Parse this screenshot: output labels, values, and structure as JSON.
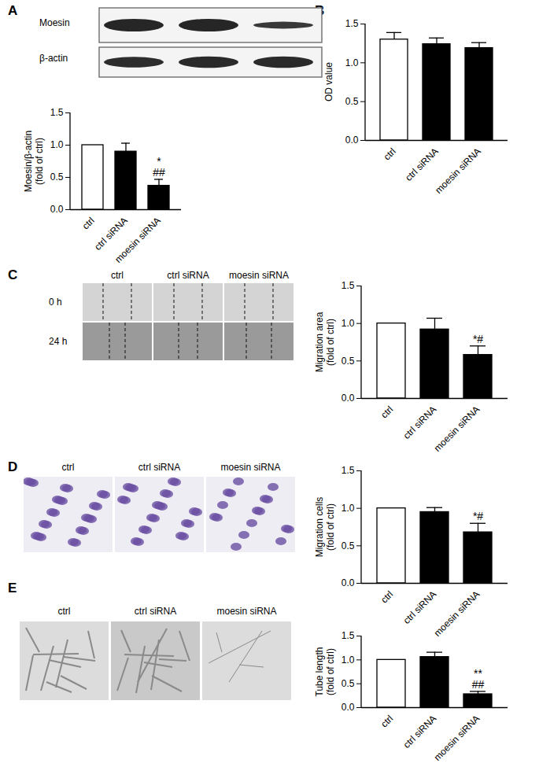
{
  "figure": {
    "panels": [
      {
        "letter": "A",
        "blot_labels": [
          "Moesin",
          "β-actin"
        ]
      },
      {
        "letter": "B"
      },
      {
        "letter": "C",
        "image_columns": [
          "ctrl",
          "ctrl siRNA",
          "moesin siRNA"
        ],
        "image_rows": [
          "0 h",
          "24 h"
        ]
      },
      {
        "letter": "D",
        "image_columns": [
          "ctrl",
          "ctrl siRNA",
          "moesin siRNA"
        ]
      },
      {
        "letter": "E",
        "image_columns": [
          "ctrl",
          "ctrl siRNA",
          "moesin siRNA"
        ]
      }
    ]
  },
  "chart_data": [
    {
      "type": "bar",
      "categories": [
        "ctrl",
        "ctrl siRNA",
        "moesin siRNA"
      ],
      "values": [
        1.0,
        0.9,
        0.37
      ],
      "errors": [
        0,
        0.13,
        0.1
      ],
      "colors": [
        "#ffffff",
        "#000000",
        "#000000"
      ],
      "ylabel": [
        "Moesin/β-actin",
        "(fold of ctrl)"
      ],
      "ylim": [
        0,
        1.5
      ],
      "yticks": [
        {
          "value": 0,
          "label": "0.0"
        },
        {
          "value": 0.5,
          "label": "0.5"
        },
        {
          "value": 1,
          "label": "1.0"
        },
        {
          "value": 1.5,
          "label": "1.5"
        }
      ],
      "annotations": [
        null,
        null,
        [
          "*",
          "##"
        ]
      ]
    },
    {
      "type": "bar",
      "categories": [
        "ctrl",
        "ctrl siRNA",
        "moesin siRNA"
      ],
      "values": [
        1.3,
        1.24,
        1.19
      ],
      "errors": [
        0.09,
        0.08,
        0.07
      ],
      "colors": [
        "#ffffff",
        "#000000",
        "#000000"
      ],
      "ylabel": [
        "OD value"
      ],
      "ylim": [
        0,
        1.5
      ],
      "yticks": [
        {
          "value": 0,
          "label": "0.0"
        },
        {
          "value": 0.5,
          "label": "0.5"
        },
        {
          "value": 1,
          "label": "1.0"
        },
        {
          "value": 1.5,
          "label": "1.5"
        }
      ],
      "annotations": [
        null,
        null,
        null
      ]
    },
    {
      "type": "bar",
      "categories": [
        "ctrl",
        "ctrl siRNA",
        "moesin siRNA"
      ],
      "values": [
        1.0,
        0.92,
        0.58
      ],
      "errors": [
        0,
        0.15,
        0.12
      ],
      "colors": [
        "#ffffff",
        "#000000",
        "#000000"
      ],
      "ylabel": [
        "Migration area",
        "(fold of ctrl)"
      ],
      "ylim": [
        0,
        1.5
      ],
      "yticks": [
        {
          "value": 0,
          "label": "0.0"
        },
        {
          "value": 0.5,
          "label": "0.5"
        },
        {
          "value": 1,
          "label": "1.0"
        },
        {
          "value": 1.5,
          "label": "1.5"
        }
      ],
      "annotations": [
        null,
        null,
        [
          "*#"
        ]
      ]
    },
    {
      "type": "bar",
      "categories": [
        "ctrl",
        "ctrl siRNA",
        "moesin siRNA"
      ],
      "values": [
        1.0,
        0.95,
        0.68
      ],
      "errors": [
        0,
        0.06,
        0.12
      ],
      "colors": [
        "#ffffff",
        "#000000",
        "#000000"
      ],
      "ylabel": [
        "Migration cells",
        "(fold of ctrl)"
      ],
      "ylim": [
        0,
        1.5
      ],
      "yticks": [
        {
          "value": 0,
          "label": "0.0"
        },
        {
          "value": 0.5,
          "label": "0.5"
        },
        {
          "value": 1,
          "label": "1.0"
        },
        {
          "value": 1.5,
          "label": "1.5"
        }
      ],
      "annotations": [
        null,
        null,
        [
          "*#"
        ]
      ]
    },
    {
      "type": "bar",
      "categories": [
        "ctrl",
        "ctrl siRNA",
        "moesin siRNA"
      ],
      "values": [
        1.0,
        1.06,
        0.28
      ],
      "errors": [
        0,
        0.1,
        0.06
      ],
      "colors": [
        "#ffffff",
        "#000000",
        "#000000"
      ],
      "ylabel": [
        "Tube length",
        "(fold of ctrl)"
      ],
      "ylim": [
        0,
        1.5
      ],
      "yticks": [
        {
          "value": 0,
          "label": "0.0"
        },
        {
          "value": 0.5,
          "label": "0.5"
        },
        {
          "value": 1,
          "label": "1.0"
        },
        {
          "value": 1.5,
          "label": "1.5"
        }
      ],
      "annotations": [
        null,
        null,
        [
          "**",
          "##"
        ]
      ]
    }
  ]
}
